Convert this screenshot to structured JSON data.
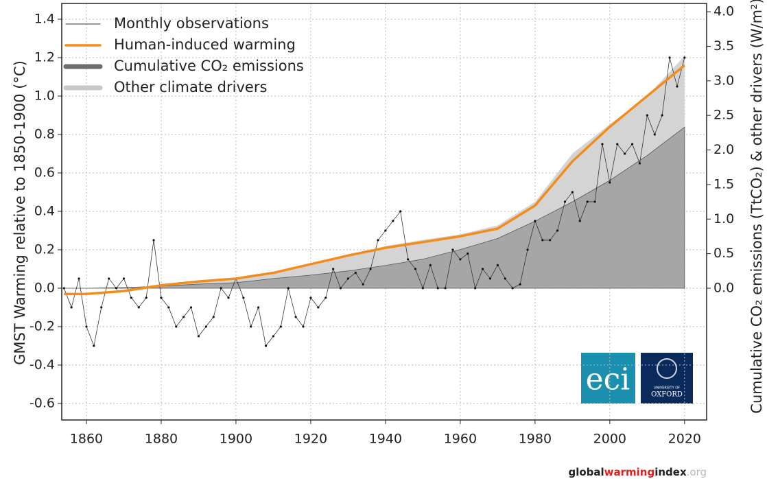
{
  "chart_data": {
    "type": "line",
    "ylabel": "GMST Warming relative to 1850-1900 (°C)",
    "y2label": "Cumulative CO₂ emissions (TtCO₂) & other drivers (W/m²)",
    "xlim": [
      1853.4,
      2025.9
    ],
    "xticks": [
      1860,
      1880,
      1900,
      1920,
      1940,
      1960,
      1980,
      2000,
      2020
    ],
    "ylim": [
      -0.686,
      1.482
    ],
    "yticks": [
      -0.6,
      -0.4,
      -0.2,
      {
        "value": 0,
        "label": "0.0"
      },
      0.2,
      0.4,
      0.6,
      0.8,
      {
        "value": 1,
        "label": "1.0"
      },
      1.2,
      1.4
    ],
    "y2lim": [
      -1.906,
      4.12
    ],
    "y2ticks": [
      {
        "value": 0,
        "label": "0.0"
      },
      0.5,
      {
        "value": 1,
        "label": "1.0"
      },
      1.5,
      {
        "value": 2,
        "label": "2.0"
      },
      2.5,
      {
        "value": 3,
        "label": "3.0"
      },
      3.5,
      {
        "value": 4,
        "label": "4.0"
      }
    ],
    "grid": true,
    "stacked": true,
    "legend": "upper left",
    "series": [
      {
        "name": "Cumulative CO₂ emissions",
        "type": "area",
        "axis": "y2",
        "color": "#a6a6a6",
        "x": [
          1854,
          1860,
          1870,
          1880,
          1890,
          1900,
          1910,
          1920,
          1930,
          1940,
          1950,
          1960,
          1970,
          1980,
          1990,
          2000,
          2010,
          2020
        ],
        "values": [
          0,
          0,
          0.01,
          0.03,
          0.06,
          0.08,
          0.14,
          0.19,
          0.25,
          0.33,
          0.42,
          0.56,
          0.72,
          0.97,
          1.25,
          1.56,
          1.92,
          2.33
        ]
      },
      {
        "name": "Other climate drivers",
        "type": "area",
        "axis": "y2",
        "color": "#d4d4d4",
        "x": [
          1854,
          1860,
          1870,
          1880,
          1890,
          1900,
          1910,
          1920,
          1930,
          1940,
          1950,
          1960,
          1970,
          1980,
          1990,
          2000,
          2010,
          2020
        ],
        "values": [
          0,
          0,
          0,
          0,
          0.03,
          0.06,
          0.08,
          0.17,
          0.22,
          0.28,
          0.28,
          0.22,
          0.19,
          0.28,
          0.7,
          0.81,
          0.86,
          1.03
        ]
      },
      {
        "name": "Monthly observations",
        "type": "points",
        "color": "#333333",
        "x": [
          1854,
          1856,
          1858,
          1860,
          1862,
          1864,
          1866,
          1868,
          1870,
          1872,
          1874,
          1876,
          1878,
          1880,
          1882,
          1884,
          1886,
          1888,
          1890,
          1892,
          1894,
          1896,
          1898,
          1900,
          1902,
          1904,
          1906,
          1908,
          1910,
          1912,
          1914,
          1916,
          1918,
          1920,
          1922,
          1924,
          1926,
          1928,
          1930,
          1932,
          1934,
          1936,
          1938,
          1940,
          1942,
          1944,
          1946,
          1948,
          1950,
          1952,
          1954,
          1956,
          1958,
          1960,
          1962,
          1964,
          1966,
          1968,
          1970,
          1972,
          1974,
          1976,
          1978,
          1980,
          1982,
          1984,
          1986,
          1988,
          1990,
          1992,
          1994,
          1996,
          1998,
          2000,
          2002,
          2004,
          2006,
          2008,
          2010,
          2012,
          2014,
          2016,
          2018,
          2020
        ],
        "values": [
          0.0,
          -0.1,
          0.05,
          -0.2,
          -0.3,
          -0.1,
          0.05,
          0.0,
          0.05,
          -0.05,
          -0.1,
          -0.05,
          0.25,
          -0.05,
          -0.1,
          -0.2,
          -0.15,
          -0.1,
          -0.25,
          -0.2,
          -0.15,
          0.0,
          -0.05,
          0.05,
          -0.05,
          -0.2,
          -0.1,
          -0.3,
          -0.25,
          -0.2,
          0.0,
          -0.15,
          -0.2,
          -0.05,
          -0.1,
          -0.05,
          0.1,
          0.0,
          0.05,
          0.08,
          0.02,
          0.1,
          0.25,
          0.3,
          0.35,
          0.4,
          0.15,
          0.1,
          0.0,
          0.12,
          0.0,
          0.0,
          0.2,
          0.15,
          0.18,
          0.0,
          0.1,
          0.05,
          0.12,
          0.05,
          0.0,
          0.02,
          0.2,
          0.35,
          0.25,
          0.25,
          0.3,
          0.45,
          0.5,
          0.35,
          0.45,
          0.45,
          0.75,
          0.55,
          0.75,
          0.7,
          0.75,
          0.65,
          0.9,
          0.8,
          0.9,
          1.2,
          1.05,
          1.2
        ]
      },
      {
        "name": "Human-induced warming",
        "type": "line",
        "color": "#f28c1a",
        "x": [
          1854,
          1860,
          1870,
          1880,
          1890,
          1900,
          1910,
          1920,
          1930,
          1940,
          1950,
          1960,
          1970,
          1980,
          1990,
          2000,
          2010,
          2020
        ],
        "values": [
          -0.03,
          -0.03,
          -0.015,
          0.015,
          0.035,
          0.05,
          0.08,
          0.125,
          0.17,
          0.21,
          0.24,
          0.27,
          0.31,
          0.43,
          0.66,
          0.84,
          1.0,
          1.16
        ]
      }
    ],
    "legend_order": [
      2,
      3,
      0,
      1
    ],
    "logos": {
      "eci": "eci",
      "oxford_top": "UNIVERSITY OF",
      "oxford": "OXFORD"
    },
    "footer": {
      "global": "global",
      "warming": "warming",
      "index": "index",
      "org": ".org"
    }
  }
}
